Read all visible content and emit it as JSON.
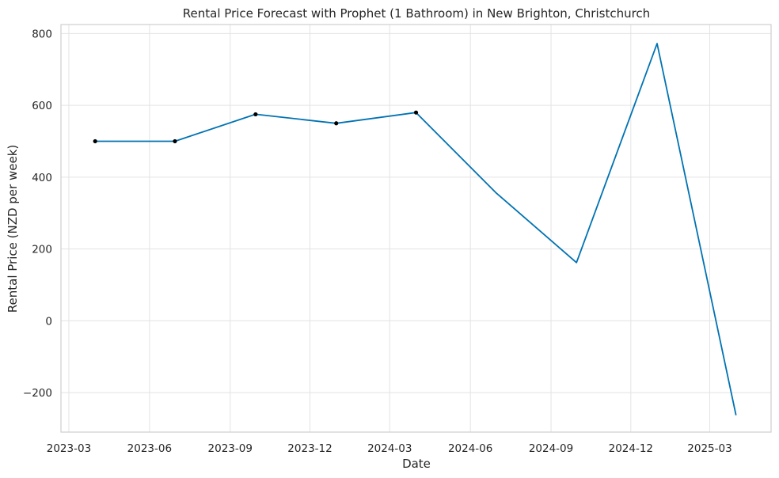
{
  "chart_data": {
    "type": "line",
    "title": "Rental Price Forecast with Prophet (1 Bathroom) in New Brighton, Christchurch",
    "xlabel": "Date",
    "ylabel": "Rental Price (NZD per week)",
    "ylim": [
      -310,
      825
    ],
    "xlim": [
      "2023-02-20",
      "2025-05-10"
    ],
    "grid": true,
    "x_ticks": [
      "2023-03",
      "2023-06",
      "2023-09",
      "2023-12",
      "2024-03",
      "2024-06",
      "2024-09",
      "2024-12",
      "2025-03"
    ],
    "y_ticks": [
      -200,
      0,
      200,
      400,
      600,
      800
    ],
    "y_tick_labels": [
      "−200",
      "0",
      "200",
      "400",
      "600",
      "800"
    ],
    "series": [
      {
        "kind": "forecast",
        "color": "#0072B2",
        "x": [
          "2023-03-31",
          "2023-06-30",
          "2023-09-30",
          "2023-12-31",
          "2024-03-31",
          "2024-06-30",
          "2024-09-30",
          "2024-12-31",
          "2025-03-31"
        ],
        "values": [
          500,
          500,
          575,
          550,
          580,
          357,
          162,
          772,
          -263
        ]
      },
      {
        "kind": "observed",
        "color": "#000000",
        "x": [
          "2023-03-31",
          "2023-06-30",
          "2023-09-30",
          "2023-12-31",
          "2024-03-31"
        ],
        "values": [
          500,
          500,
          575,
          550,
          580
        ]
      }
    ]
  }
}
